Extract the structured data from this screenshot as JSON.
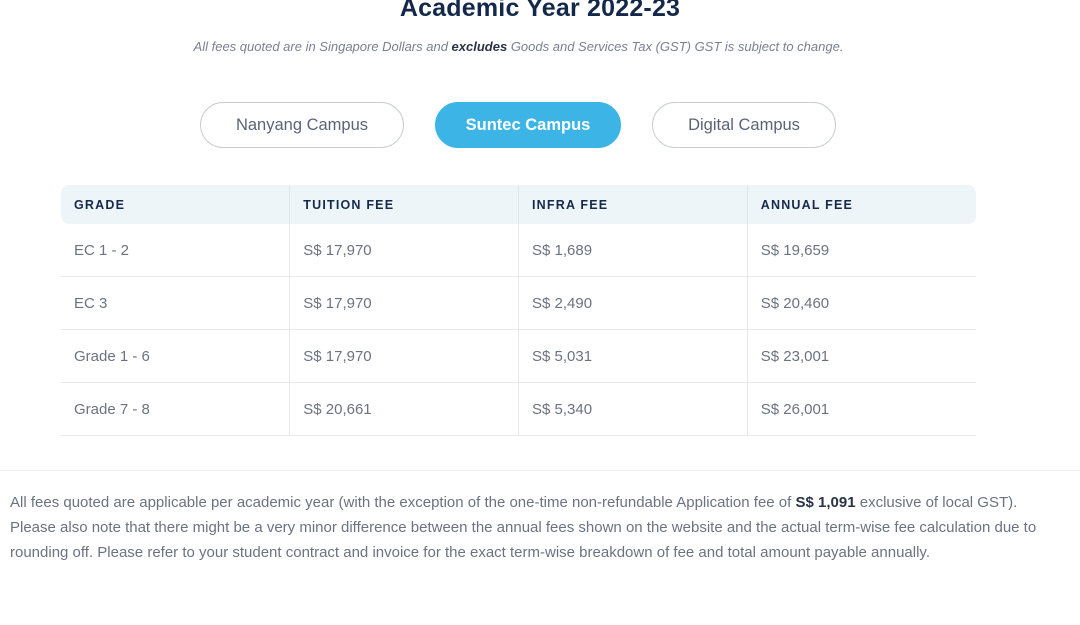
{
  "header": {
    "title": "Academic Year 2022-23",
    "subtitle_before": "All fees quoted are in Singapore Dollars and ",
    "subtitle_bold": "excludes",
    "subtitle_after": " Goods and Services Tax (GST) GST is subject to change."
  },
  "tabs": [
    {
      "label": "Nanyang Campus",
      "active": false
    },
    {
      "label": "Suntec Campus",
      "active": true
    },
    {
      "label": "Digital Campus",
      "active": false
    }
  ],
  "table": {
    "headers": [
      "GRADE",
      "TUITION FEE",
      "INFRA FEE",
      "ANNUAL FEE"
    ],
    "rows": [
      [
        "EC 1 - 2",
        "S$ 17,970",
        "S$ 1,689",
        "S$ 19,659"
      ],
      [
        "EC 3",
        "S$ 17,970",
        "S$ 2,490",
        "S$ 20,460"
      ],
      [
        "Grade 1 - 6",
        "S$ 17,970",
        "S$ 5,031",
        "S$ 23,001"
      ],
      [
        "Grade 7 - 8",
        "S$ 20,661",
        "S$ 5,340",
        "S$ 26,001"
      ]
    ]
  },
  "notes": {
    "p1_before": "All fees quoted are applicable per academic year (with the exception of the one-time non-refundable Application fee of ",
    "p1_bold": "S$ 1,091",
    "p1_after": " exclusive of local GST).",
    "p2": "Please also note that there might be a very minor difference between the annual fees shown on the website and the actual term-wise fee calculation due to rounding off. Please refer to your student contract and invoice for the exact term-wise breakdown of fee and total amount payable annually."
  },
  "colors": {
    "accent": "#3cb5e6",
    "title": "#14284b",
    "header_bg": "#eef5f9"
  }
}
